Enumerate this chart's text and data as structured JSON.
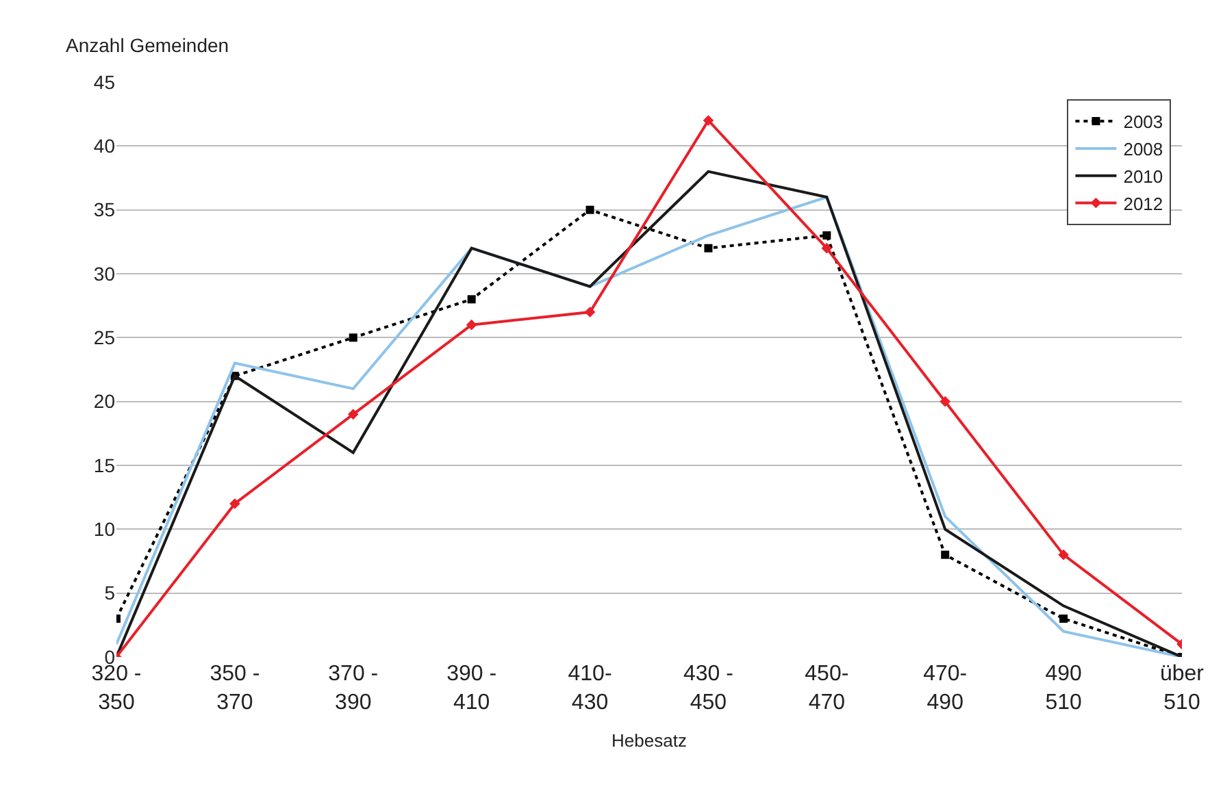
{
  "chart_data": {
    "type": "line",
    "ylabel": "Anzahl Gemeinden",
    "xlabel": "Hebesatz",
    "categories": [
      "320 -\n350",
      "350 -\n370",
      "370 -\n390",
      "390 -\n410",
      "410-\n430",
      "430 -\n450",
      "450-\n470",
      "470-\n490",
      "490\n510",
      "über\n510"
    ],
    "series": [
      {
        "name": "2003",
        "color": "#000000",
        "marker": "square",
        "line_style": "dotted",
        "values": [
          3,
          22,
          25,
          28,
          35,
          32,
          33,
          8,
          3,
          0
        ]
      },
      {
        "name": "2008",
        "color": "#8ec3ea",
        "marker": "none",
        "line_style": "solid",
        "values": [
          1,
          23,
          21,
          32,
          29,
          33,
          36,
          11,
          2,
          0
        ]
      },
      {
        "name": "2010",
        "color": "#1a1a1a",
        "marker": "none",
        "line_style": "solid",
        "values": [
          0,
          22,
          16,
          32,
          29,
          38,
          36,
          10,
          4,
          0
        ]
      },
      {
        "name": "2012",
        "color": "#e8202a",
        "marker": "diamond",
        "line_style": "solid",
        "values": [
          0,
          12,
          19,
          26,
          27,
          42,
          32,
          20,
          8,
          1
        ]
      }
    ],
    "ylim": [
      0,
      45
    ],
    "yticks": [
      0,
      5,
      10,
      15,
      20,
      25,
      30,
      35,
      40,
      45
    ],
    "grid": "y",
    "legend": "top right"
  }
}
